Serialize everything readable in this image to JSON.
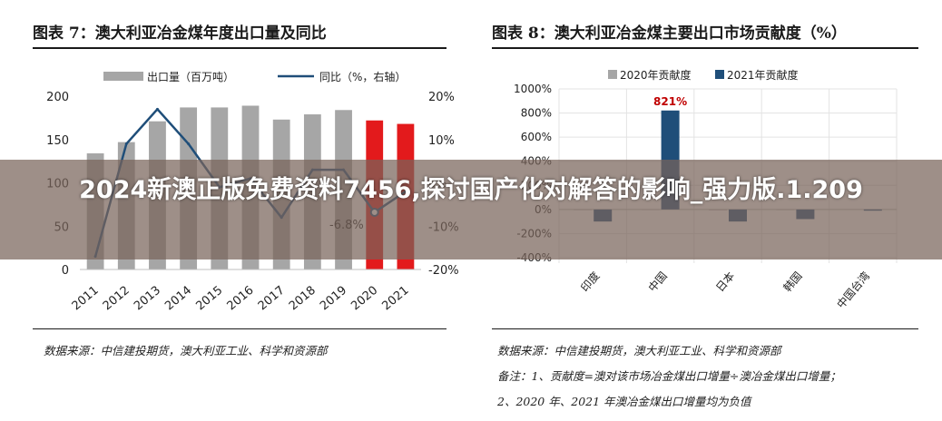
{
  "left_panel": {
    "title": "图表 7：澳大利亚冶金煤年度出口量及同比",
    "source": "数据来源：中信建投期货，澳大利亚工业、科学和资源部"
  },
  "right_panel": {
    "title": "图表 8：澳大利亚冶金煤主要出口市场贡献度（%）",
    "source": "数据来源：中信建投期货，澳大利亚工业、科学和资源部",
    "note1": "备注：1、贡献度=澳对该市场冶金煤出口增量÷澳冶金煤出口增量；",
    "note2": "2、2020 年、2021 年澳冶金煤出口增量均为负值"
  },
  "banner": {
    "text": "2024新澳正版免费资料7456,探讨国产化对解答的影响_强力版.1.209"
  },
  "colors": {
    "gray_bar": "#a6a6a6",
    "red_bar": "#e31a1c",
    "line": "#1f4e79",
    "navy_bar": "#1f4e79",
    "annotation_red": "#c00000"
  },
  "chart_data": [
    {
      "type": "bar",
      "categories": [
        "2011",
        "2012",
        "2013",
        "2014",
        "2015",
        "2016",
        "2017",
        "2018",
        "2019",
        "2020",
        "2021"
      ],
      "series": [
        {
          "name": "出口量（百万吨）",
          "type": "bar",
          "axis": "left",
          "values": [
            134,
            147,
            171,
            187,
            187,
            189,
            173,
            179,
            184,
            172,
            168
          ]
        },
        {
          "name": "同比（%，右轴）",
          "type": "line",
          "axis": "right",
          "values": [
            -17,
            9,
            17,
            9,
            -1,
            1,
            -8,
            3,
            3,
            -6.8,
            -2
          ]
        }
      ],
      "y_left_ticks": [
        "0",
        "50",
        "100",
        "150",
        "200"
      ],
      "y_right_ticks": [
        "-20%",
        "-10%",
        "0%",
        "10%",
        "20%"
      ],
      "ylim_left": [
        0,
        200
      ],
      "ylim_right": [
        -20,
        20
      ],
      "highlight_categories": [
        "2020",
        "2021"
      ],
      "annotation": {
        "text": "-6.8%",
        "category": "2020"
      },
      "legend_position": "top"
    },
    {
      "type": "bar",
      "categories": [
        "印度",
        "中国",
        "日本",
        "韩国",
        "中国台湾"
      ],
      "series": [
        {
          "name": "2020年贡献度",
          "values": [
            -5,
            -3,
            -6,
            -4,
            -1
          ]
        },
        {
          "name": "2021年贡献度",
          "values": [
            -100,
            821,
            -100,
            -80,
            -10
          ]
        }
      ],
      "y_ticks": [
        "-400%",
        "-200%",
        "0%",
        "200%",
        "400%",
        "600%",
        "800%",
        "1000%"
      ],
      "ylim": [
        -400,
        1000
      ],
      "annotation": {
        "text": "821%",
        "category": "中国"
      },
      "legend_position": "top"
    }
  ]
}
